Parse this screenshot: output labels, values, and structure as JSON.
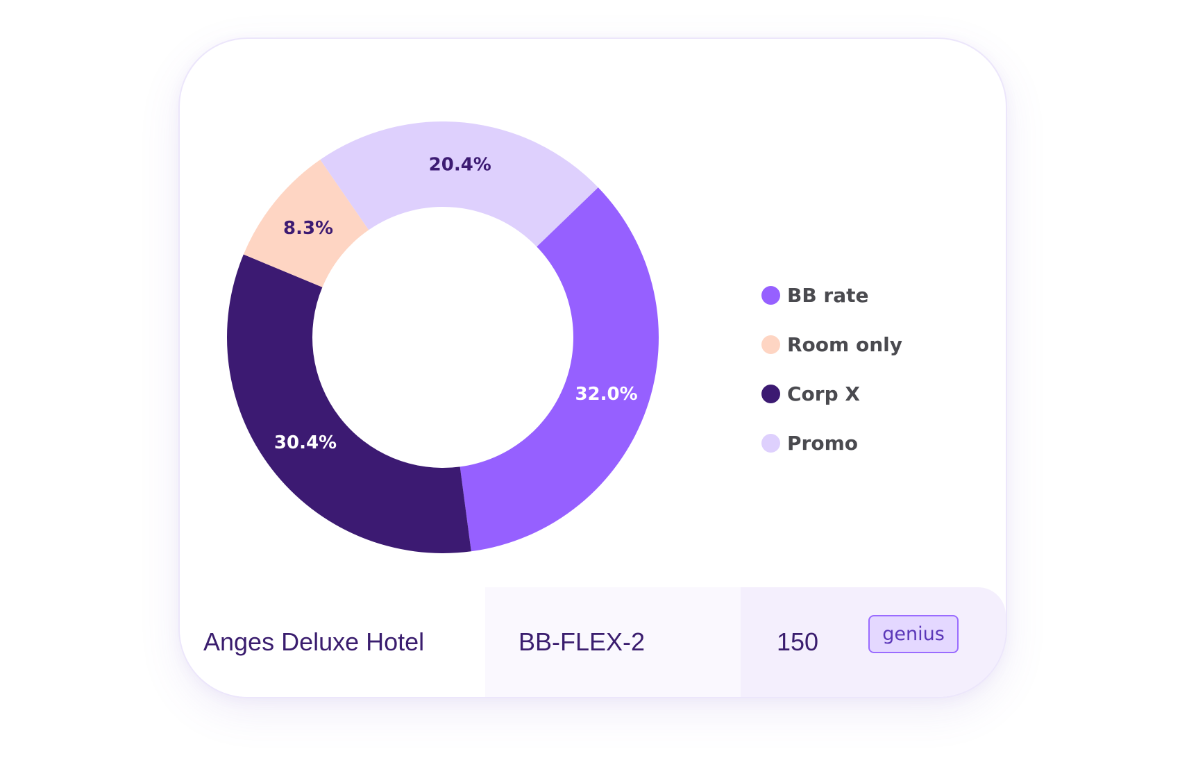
{
  "chart_data": {
    "type": "pie",
    "style": "donut",
    "slices": [
      {
        "name": "BB rate",
        "value": 32.0,
        "label": "32.0%",
        "color": "#9660ff",
        "label_color": "#ffffff"
      },
      {
        "name": "Corp X",
        "value": 30.4,
        "label": "30.4%",
        "color": "#3c1a72",
        "label_color": "#ffffff"
      },
      {
        "name": "Room only",
        "value": 8.3,
        "label": "8.3%",
        "color": "#fed5c3",
        "label_color": "#3c1a72"
      },
      {
        "name": "Promo",
        "value": 20.4,
        "label": "20.4%",
        "color": "#ded0fd",
        "label_color": "#3c1a72"
      }
    ],
    "legend": {
      "placement": "right",
      "items": [
        {
          "label": "BB rate",
          "color": "#9660ff"
        },
        {
          "label": "Room only",
          "color": "#fed5c3"
        },
        {
          "label": "Corp X",
          "color": "#3c1a72"
        },
        {
          "label": "Promo",
          "color": "#ded0fd"
        }
      ]
    }
  },
  "row": {
    "hotel": "Anges Deluxe Hotel",
    "code": "BB-FLEX-2",
    "value": "150",
    "badge": "genius"
  }
}
